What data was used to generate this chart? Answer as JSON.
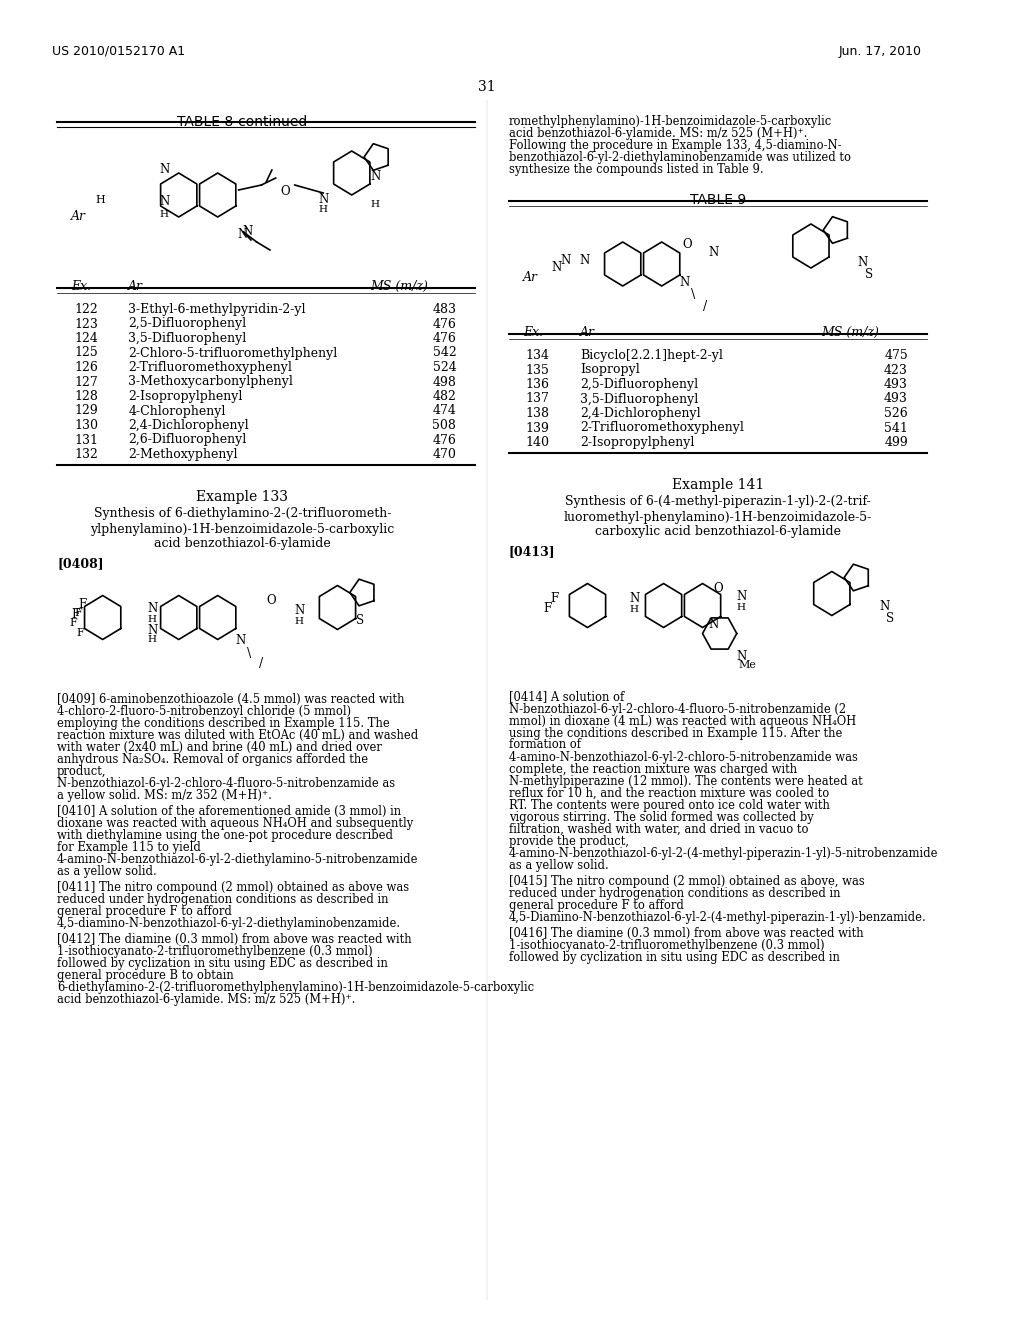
{
  "background_color": "#ffffff",
  "header_left": "US 2010/0152170 A1",
  "header_right": "Jun. 17, 2010",
  "page_number": "31",
  "table8_continued_title": "TABLE 8-continued",
  "table8_rows": [
    [
      "122",
      "3-Ethyl-6-methylpyridin-2-yl",
      "483"
    ],
    [
      "123",
      "2,5-Difluorophenyl",
      "476"
    ],
    [
      "124",
      "3,5-Difluorophenyl",
      "476"
    ],
    [
      "125",
      "2-Chloro-5-trifluoromethylphenyl",
      "542"
    ],
    [
      "126",
      "2-Trifluoromethoxyphenyl",
      "524"
    ],
    [
      "127",
      "3-Methoxycarbonylphenyl",
      "498"
    ],
    [
      "128",
      "2-Isopropylphenyl",
      "482"
    ],
    [
      "129",
      "4-Chlorophenyl",
      "474"
    ],
    [
      "130",
      "2,4-Dichlorophenyl",
      "508"
    ],
    [
      "131",
      "2,6-Difluorophenyl",
      "476"
    ],
    [
      "132",
      "2-Methoxyphenyl",
      "470"
    ]
  ],
  "table9_title": "TABLE 9",
  "table9_rows": [
    [
      "134",
      "Bicyclo[2.2.1]hept-2-yl",
      "475"
    ],
    [
      "135",
      "Isopropyl",
      "423"
    ],
    [
      "136",
      "2,5-Difluorophenyl",
      "493"
    ],
    [
      "137",
      "3,5-Difluorophenyl",
      "493"
    ],
    [
      "138",
      "2,4-Dichlorophenyl",
      "526"
    ],
    [
      "139",
      "2-Trifluoromethoxyphenyl",
      "541"
    ],
    [
      "140",
      "2-Isopropylphenyl",
      "499"
    ]
  ],
  "example133_title": "Example 133",
  "example133_subtitle": "Synthesis of 6-diethylamino-2-(2-trifluorometh-\nylphenylamino)-1H-benzoimidazole-5-carboxylic\nacid benzothiazol-6-ylamide",
  "paragraph0408": "[0408]",
  "paragraph0409": "[0409]  6-aminobenzothioazole (4.5 mmol) was reacted with 4-chloro-2-fluoro-5-nitrobenzoyl chloride (5 mmol) employing the conditions described in Example 115. The reaction mixture was diluted with EtOAc (40 mL) and washed with water (2x40 mL) and brine (40 mL) and dried over anhydrous Na₂SO₄. Removal of organics afforded the product, N-benzothiazol-6-yl-2-chloro-4-fluoro-5-nitrobenzamide as a yellow solid. MS: m/z 352 (M+H)⁺.",
  "paragraph0410": "[0410]  A solution of the aforementioned amide (3 mmol) in dioxane was reacted with aqueous NH₄OH and subsequently with diethylamine using the one-pot procedure described for Example 115 to yield 4-amino-N-benzothiazol-6-yl-2-diethylamino-5-nitrobenzamide as a yellow solid.",
  "paragraph0411": "[0411]  The nitro compound (2 mmol) obtained as above was reduced under hydrogenation conditions as described in general procedure F to afford 4,5-diamino-N-benzothiazol-6-yl-2-diethylaminobenzamide.",
  "paragraph0412": "[0412]  The diamine (0.3 mmol) from above was reacted with 1-isothiocyanato-2-trifluoromethylbenzene (0.3 mmol) followed by cyclization in situ using EDC as described in general procedure B to obtain 6-diethylamino-2-(2-trifluoromethylphenylamino)-1H-benzoimidazole-5-carboxylic acid benzothiazol-6-ylamide. MS: m/z 525 (M+H)⁺.",
  "paragraph_following133": "Following the procedure in Example 133, 4,5-diamino-N-benzothiazol-6-yl-2-diethylaminobenzamide was utilized to synthesize the compounds listed in Table 9.",
  "example141_title": "Example 141",
  "example141_subtitle": "Synthesis of 6-(4-methyl-piperazin-1-yl)-2-(2-trif-\nluoromethyl-phenylamino)-1H-benzoimidazole-5-\ncarboxylic acid benzothiazol-6-ylamide",
  "paragraph0413": "[0413]",
  "paragraph0414": "[0414]  A solution of N-benzothiazol-6-yl-2-chloro-4-fluoro-5-nitrobenzamide (2 mmol) in dioxane (4 mL) was reacted with aqueous NH₄OH using the conditions described in Example 115. After the formation of 4-amino-N-benzothiazol-6-yl-2-chloro-5-nitrobenzamide was complete, the reaction mixture was charged with N-methylpiperazine (12 mmol). The contents were heated at reflux for 10 h, and the reaction mixture was cooled to RT. The contents were poured onto ice cold water with vigorous stirring. The solid formed was collected by filtration, washed with water, and dried in vacuo to provide the product, 4-amino-N-benzothiazol-6-yl-2-(4-methyl-piperazin-1-yl)-5-nitrobenzamide as a yellow solid.",
  "paragraph0415": "[0415]  The nitro compound (2 mmol) obtained as above, was reduced under hydrogenation conditions as described in general procedure F to afford 4,5-Diamino-N-benzothiazol-6-yl-2-(4-methyl-piperazin-1-yl)-benzamide.",
  "paragraph0416": "[0416]  The diamine (0.3 mmol) from above was reacted with 1-isothiocyanato-2-trifluoromethylbenzene (0.3 mmol) followed by cyclization in situ using EDC as described in"
}
